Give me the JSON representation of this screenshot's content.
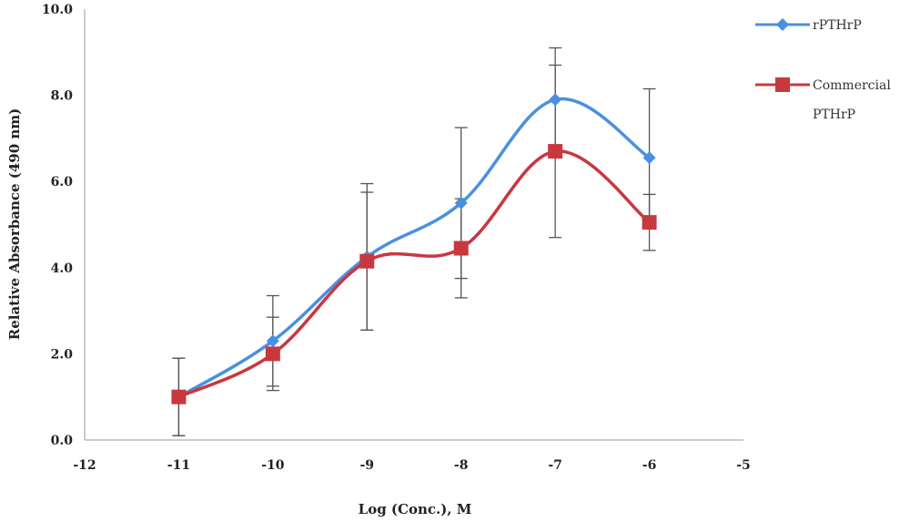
{
  "chart_data": {
    "type": "line",
    "xlabel": "Log (Conc.), M",
    "ylabel": "Relative Absorbance (490 nm)",
    "xlim": [
      -12,
      -5
    ],
    "ylim": [
      0,
      10
    ],
    "xticks": [
      "-12",
      "-11",
      "-10",
      "-9",
      "-8",
      "-7",
      "-6",
      "-5"
    ],
    "yticks": [
      "0.0",
      "2.0",
      "4.0",
      "6.0",
      "8.0",
      "10.0"
    ],
    "grid": false,
    "legend_position": "top-right",
    "series": [
      {
        "name": "rPTHrP",
        "color": "#4a90e2",
        "marker": "diamond",
        "x": [
          -11,
          -10,
          -9,
          -8,
          -7,
          -6
        ],
        "y": [
          1.0,
          2.3,
          4.25,
          5.5,
          7.9,
          6.55
        ],
        "error": [
          0.9,
          1.05,
          1.7,
          1.75,
          1.2,
          1.6
        ]
      },
      {
        "name": "Commercial PTHrP",
        "legend_lines": [
          "Commercial",
          "PTHrP"
        ],
        "color": "#c8383f",
        "marker": "square",
        "x": [
          -11,
          -10,
          -9,
          -8,
          -7,
          -6
        ],
        "y": [
          1.0,
          2.0,
          4.15,
          4.45,
          6.7,
          5.05
        ],
        "error": [
          0.9,
          0.85,
          1.6,
          1.15,
          2.0,
          0.65
        ]
      }
    ]
  }
}
